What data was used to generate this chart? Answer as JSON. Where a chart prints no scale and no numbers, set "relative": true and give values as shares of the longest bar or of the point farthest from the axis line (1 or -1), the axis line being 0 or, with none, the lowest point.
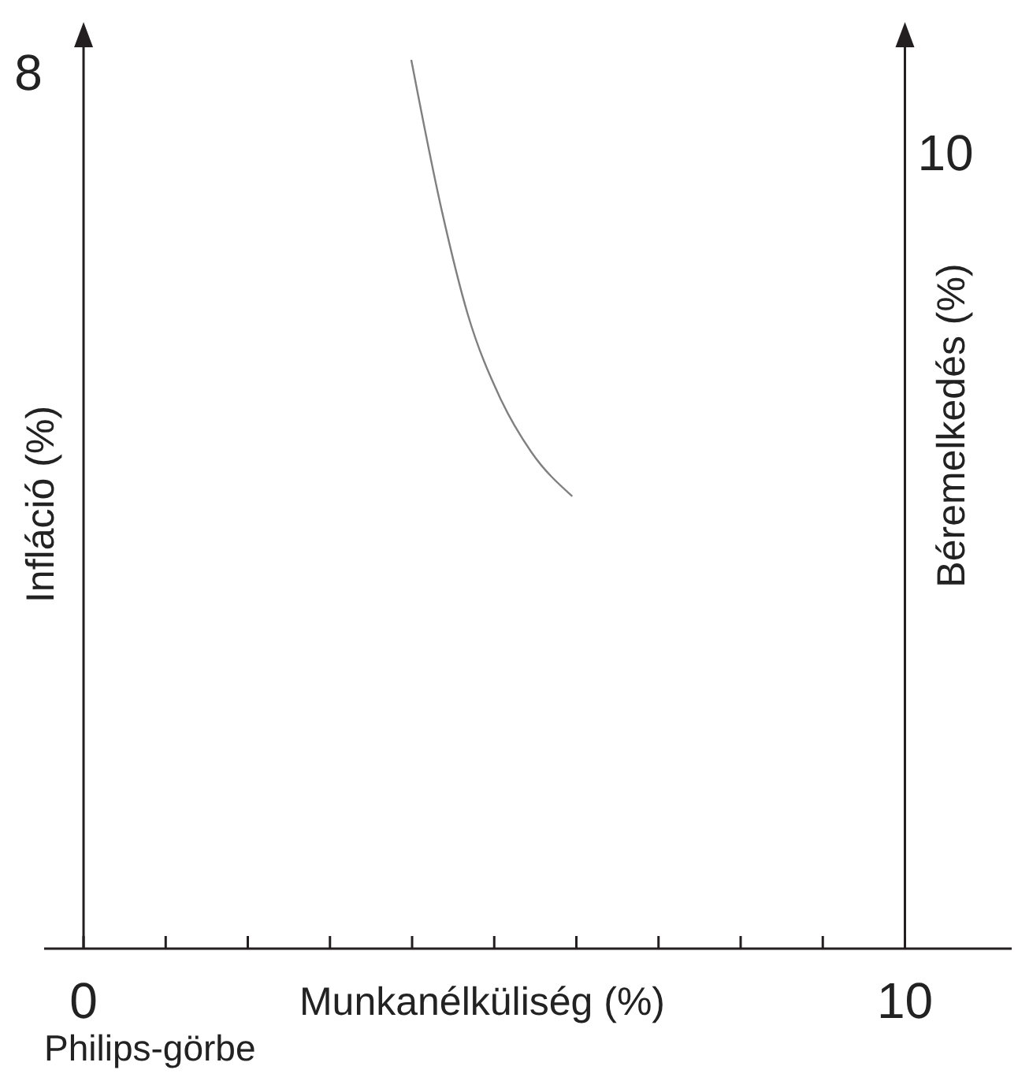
{
  "chart_data": {
    "type": "line",
    "xlabel": "Munkanélküliség (%)",
    "ylabel": "Infláció (%)",
    "y2label": "Béremelkedés (%)",
    "annotations": [
      "8",
      "10",
      "Philips-görbe"
    ],
    "relative": true,
    "xlim": [
      -0.48,
      11.3
    ],
    "xticks": [
      0,
      {
        "value": 1,
        "label": null
      },
      {
        "value": 2,
        "label": null
      },
      {
        "value": 3,
        "label": null
      },
      {
        "value": 4,
        "label": null
      },
      {
        "value": 5,
        "label": null
      },
      {
        "value": 6,
        "label": null
      },
      {
        "value": 7,
        "label": null
      },
      {
        "value": 8,
        "label": null
      },
      {
        "value": 9,
        "label": null
      },
      10
    ],
    "marker": "none",
    "line_style": "solid",
    "series": [
      {
        "color": "#808080",
        "x": [
          3.99,
          4.36,
          4.68,
          5.07,
          5.45,
          5.95
        ],
        "values": [
          1,
          0.831,
          0.713,
          0.62,
          0.559,
          0.509
        ]
      }
    ]
  }
}
